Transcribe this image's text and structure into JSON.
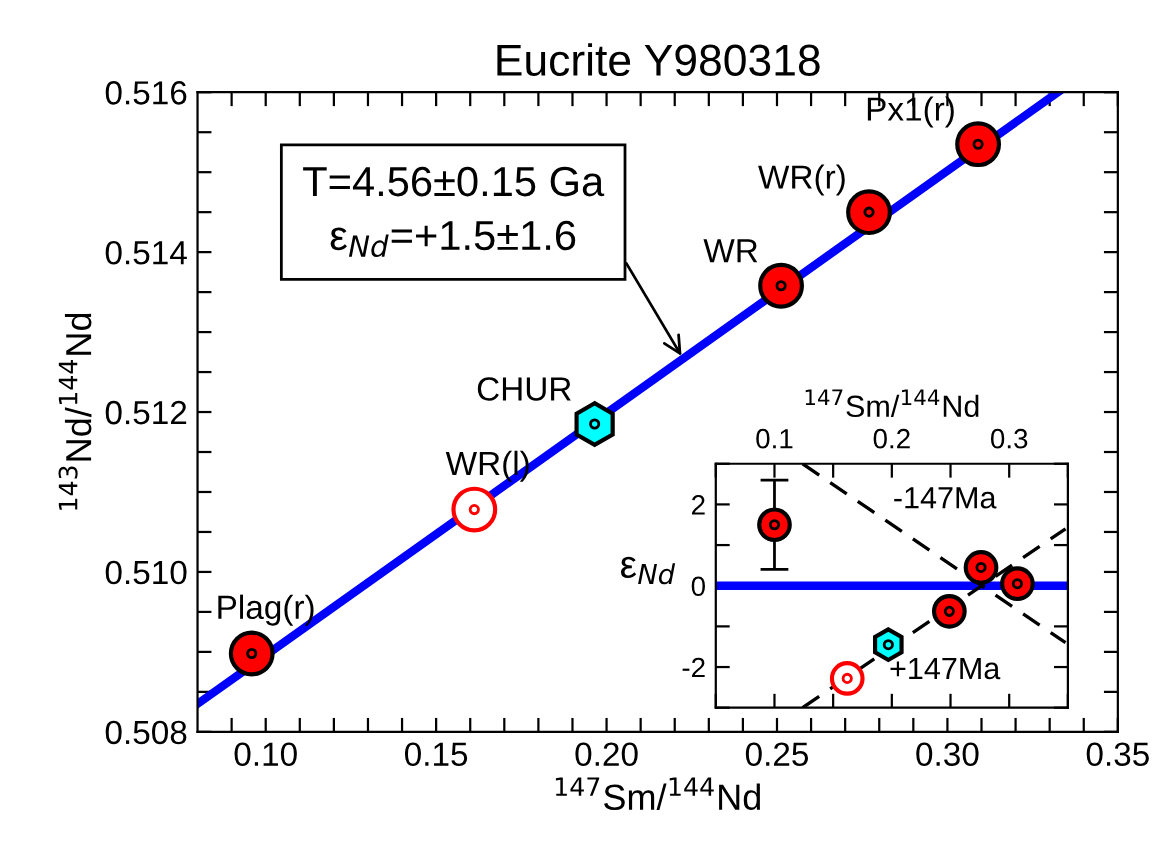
{
  "chart_data": [
    {
      "type": "scatter",
      "title": "Eucrite Y980318",
      "xlabel": "$^{147}$Sm/$^{144}$Nd",
      "ylabel": "$^{143}$Nd/$^{144}$Nd",
      "xlim": [
        0.08,
        0.35
      ],
      "ylim": [
        0.508,
        0.516
      ],
      "xticks": [
        {
          "value": 0.09,
          "label": null
        },
        {
          "value": 0.1,
          "label": "0.10"
        },
        {
          "value": 0.11,
          "label": null
        },
        {
          "value": 0.12,
          "label": null
        },
        {
          "value": 0.13,
          "label": null
        },
        {
          "value": 0.14,
          "label": null
        },
        {
          "value": 0.15,
          "label": "0.15"
        },
        {
          "value": 0.16,
          "label": null
        },
        {
          "value": 0.17,
          "label": null
        },
        {
          "value": 0.18,
          "label": null
        },
        {
          "value": 0.19,
          "label": null
        },
        {
          "value": 0.2,
          "label": "0.20"
        },
        {
          "value": 0.21,
          "label": null
        },
        {
          "value": 0.22,
          "label": null
        },
        {
          "value": 0.23,
          "label": null
        },
        {
          "value": 0.24,
          "label": null
        },
        {
          "value": 0.25,
          "label": "0.25"
        },
        {
          "value": 0.26,
          "label": null
        },
        {
          "value": 0.27,
          "label": null
        },
        {
          "value": 0.28,
          "label": null
        },
        {
          "value": 0.29,
          "label": null
        },
        {
          "value": 0.3,
          "label": "0.30"
        },
        {
          "value": 0.31,
          "label": null
        },
        {
          "value": 0.32,
          "label": null
        },
        {
          "value": 0.33,
          "label": null
        },
        {
          "value": 0.34,
          "label": null
        },
        {
          "value": 0.35,
          "label": "0.35"
        }
      ],
      "yticks": [
        0.508,
        {
          "value": 0.5085,
          "label": null
        },
        {
          "value": 0.509,
          "label": null
        },
        {
          "value": 0.5095,
          "label": null
        },
        {
          "value": 0.51,
          "label": "0.510"
        },
        {
          "value": 0.5105,
          "label": null
        },
        {
          "value": 0.511,
          "label": null
        },
        {
          "value": 0.5115,
          "label": null
        },
        0.512,
        {
          "value": 0.5125,
          "label": null
        },
        {
          "value": 0.513,
          "label": null
        },
        {
          "value": 0.5135,
          "label": null
        },
        0.514,
        {
          "value": 0.5145,
          "label": null
        },
        {
          "value": 0.515,
          "label": null
        },
        {
          "value": 0.5155,
          "label": null
        },
        0.516
      ],
      "series": [
        {
          "type": "line",
          "color": "#0000ff",
          "x": [
            0.08,
            0.3324
          ],
          "values": [
            0.50835,
            0.516
          ],
          "line_style": "solid",
          "marker": "none"
        },
        {
          "color": "#ff0000",
          "marker": "circle",
          "x": [
            0.0959,
            0.2512,
            0.277,
            0.309
          ],
          "values": [
            0.50898,
            0.51358,
            0.5145,
            0.51535
          ]
        },
        {
          "color": "#ff0000",
          "marker": "open circle",
          "x": [
            0.1612
          ],
          "values": [
            0.51078
          ]
        },
        {
          "color": "#00ffff",
          "x": [
            0.1965
          ],
          "values": [
            0.51185
          ]
        }
      ],
      "annotations": [
        {
          "text": "Plag(r)",
          "x": 0.0959,
          "y": 0.50898
        },
        {
          "text": "WR(l)",
          "x": 0.1612,
          "y": 0.51078
        },
        {
          "text": "CHUR",
          "x": 0.1965,
          "y": 0.51185
        },
        {
          "text": "WR",
          "x": 0.2512,
          "y": 0.51358
        },
        {
          "text": "WR(r)",
          "x": 0.277,
          "y": 0.5145
        },
        {
          "text": "Px1(r)",
          "x": 0.309,
          "y": 0.51535
        },
        {
          "text": "T=4.56±0.15 Ga\nε$_{Nd}$=+1.5±1.6",
          "x": 0.222,
          "y": 0.5127
        }
      ]
    },
    {
      "type": "scatter",
      "xlabel": "$^{147}$Sm/$^{144}$Nd",
      "ylabel": "ε$_{Nd}$",
      "xlim": [
        0.05,
        0.35
      ],
      "ylim": [
        -3,
        3
      ],
      "xticks": [
        {
          "value": 0.05,
          "label": null
        },
        0.1,
        {
          "value": 0.15,
          "label": null
        },
        0.2,
        {
          "value": 0.25,
          "label": null
        },
        0.3,
        {
          "value": 0.35,
          "label": null
        }
      ],
      "yticks": [
        {
          "value": -3,
          "label": null
        },
        {
          "value": -2,
          "label": "-2"
        },
        {
          "value": -1,
          "label": null
        },
        0,
        {
          "value": 1,
          "label": null
        },
        2,
        {
          "value": 3,
          "label": null
        }
      ],
      "ref_lines": [
        {
          "axis": "y",
          "value": 0,
          "color": "#0000ff",
          "line_style": "solid"
        }
      ],
      "series": [
        {
          "type": "line",
          "color": "#000000",
          "line_style": "dashed",
          "marker": "none",
          "x": [
            0.124,
            0.348
          ],
          "values": [
            -3.0,
            1.4
          ]
        },
        {
          "type": "line",
          "color": "#000000",
          "line_style": "dashed",
          "marker": "none",
          "x": [
            0.124,
            0.348
          ],
          "values": [
            3.0,
            -1.4
          ]
        },
        {
          "color": "#ff0000",
          "marker": "circle",
          "x": [
            0.1,
            0.249,
            0.276,
            0.307
          ],
          "values": [
            1.5,
            -0.63,
            0.45,
            0.05
          ],
          "errors": [
            1.1,
            null,
            null,
            null
          ]
        },
        {
          "color": "#ff0000",
          "marker": "open circle",
          "x": [
            0.162
          ],
          "values": [
            -2.28
          ]
        },
        {
          "color": "#00ffff",
          "x": [
            0.197
          ],
          "values": [
            -1.45
          ]
        }
      ],
      "annotations": [
        "-147Ma",
        "+147Ma"
      ]
    }
  ]
}
